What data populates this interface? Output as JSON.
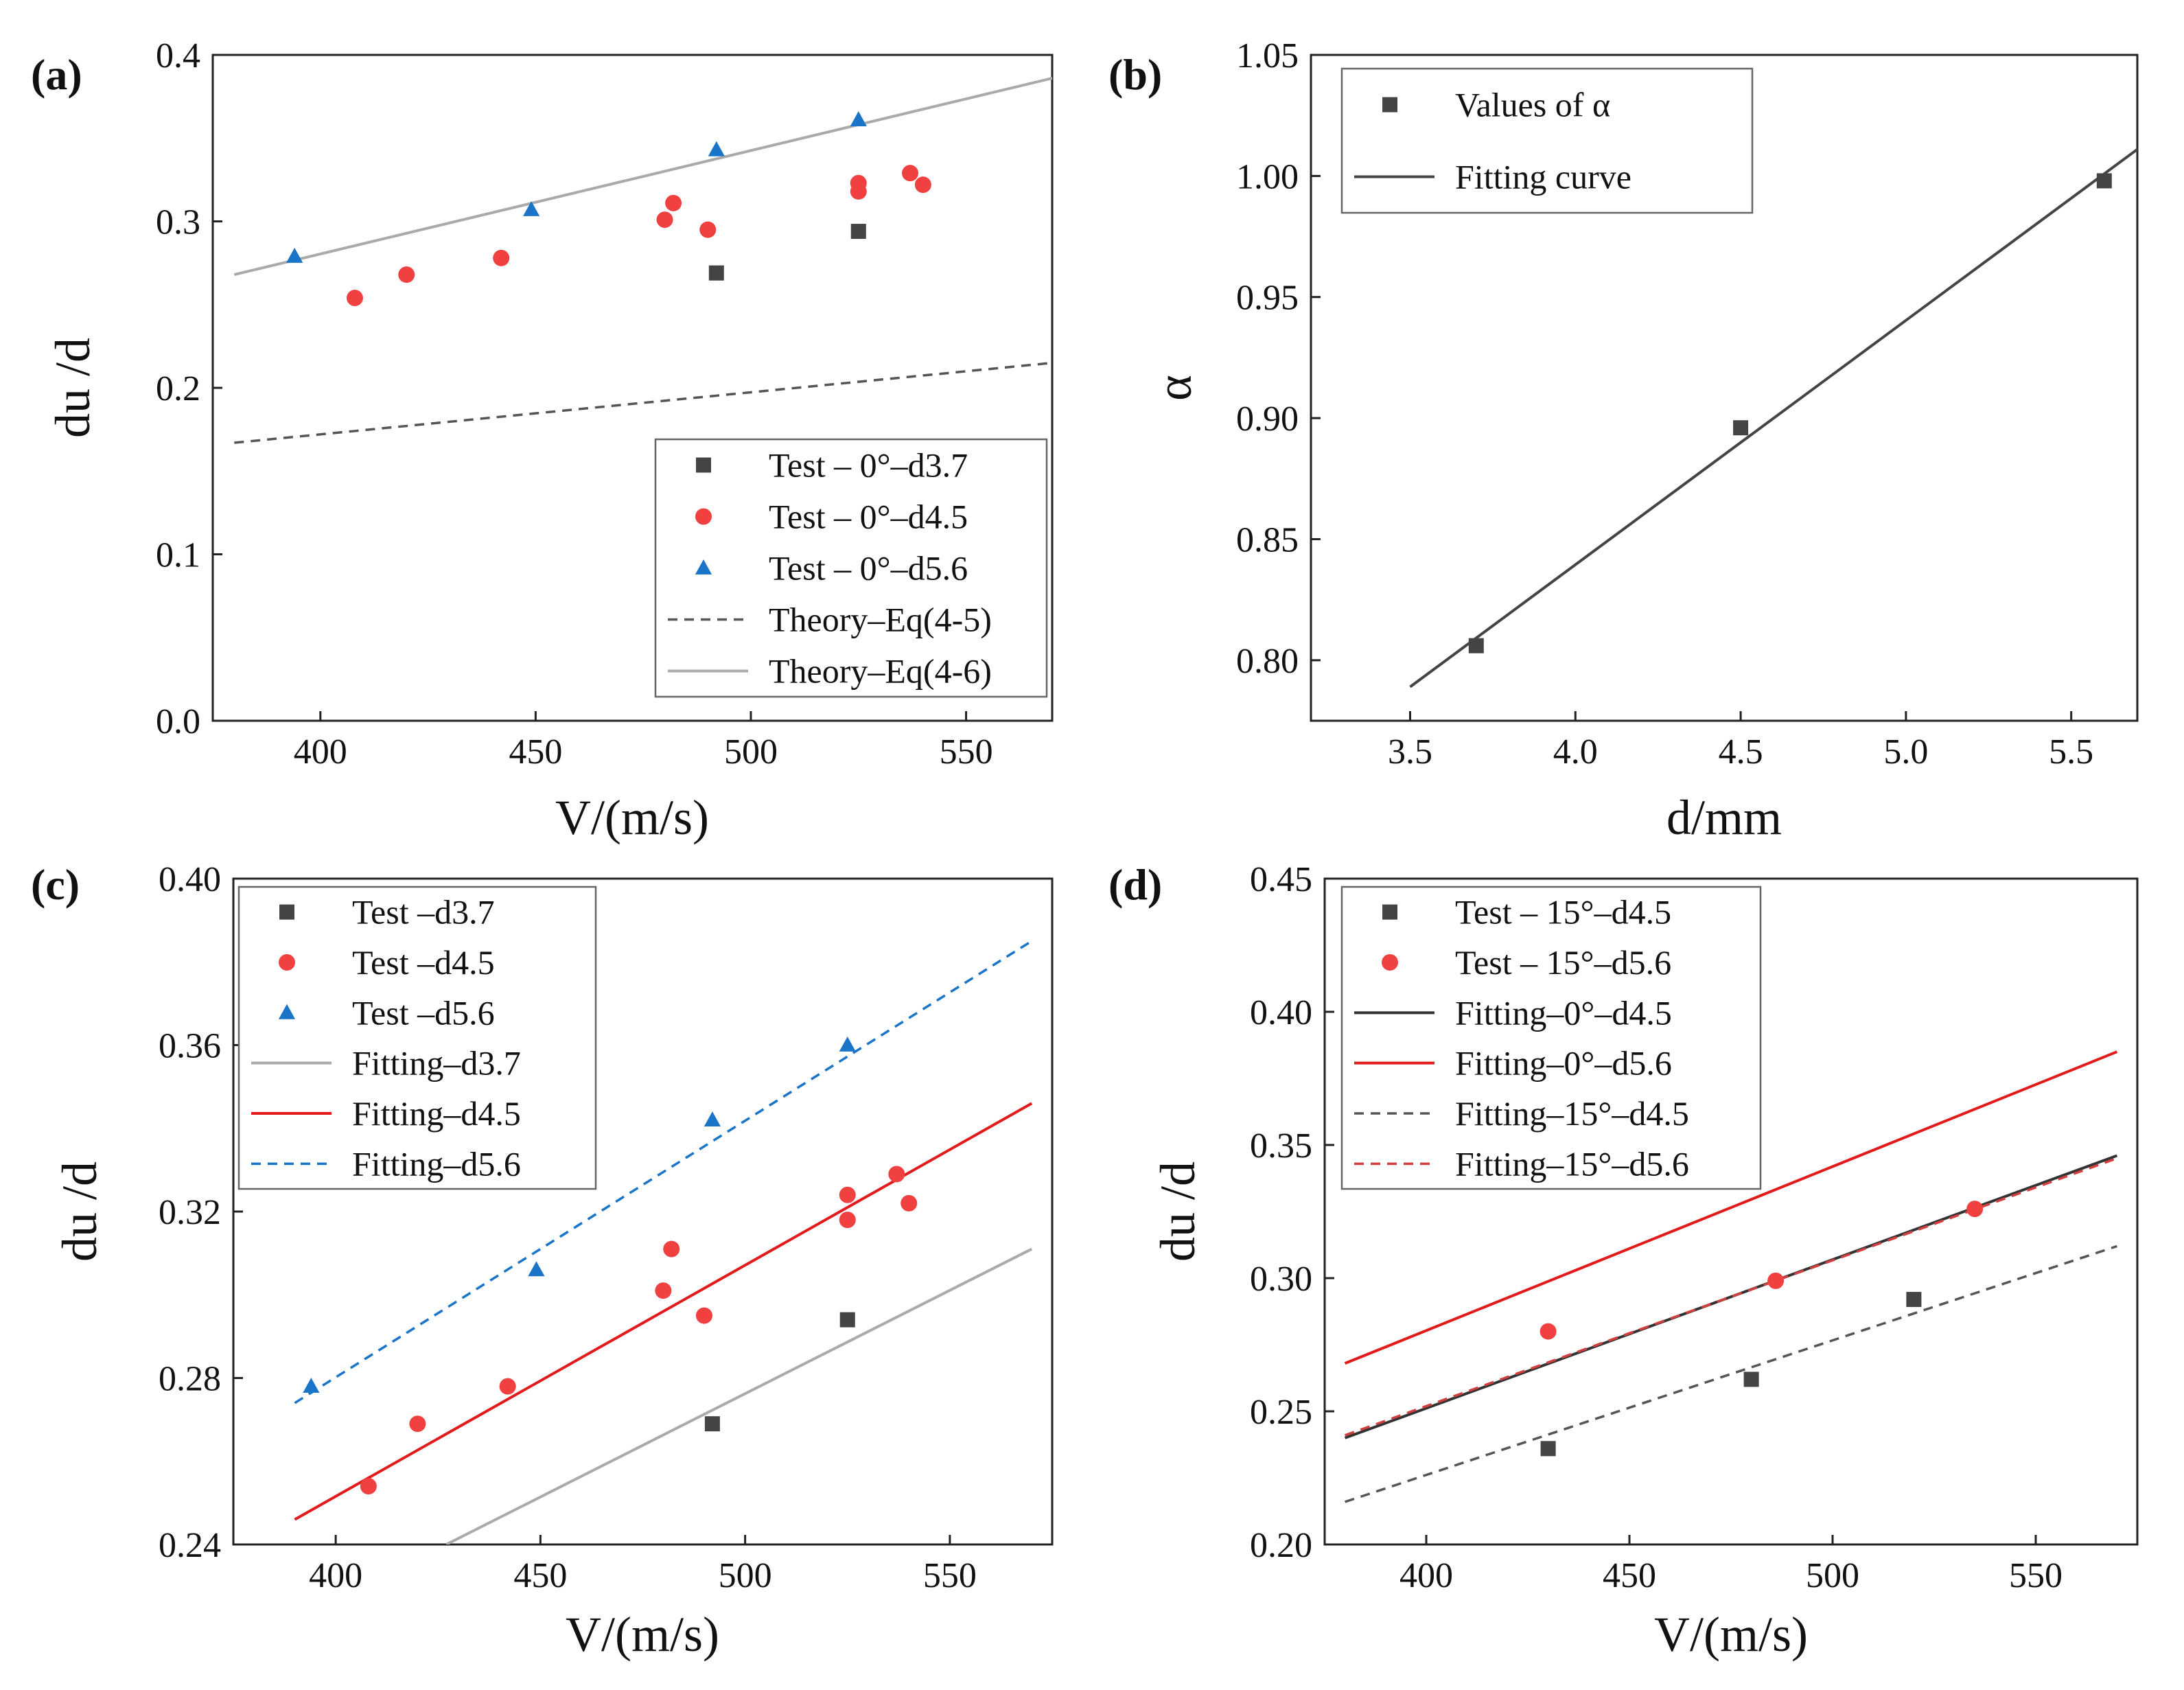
{
  "chart_data": [
    {
      "panel": "(a)",
      "type": "scatter",
      "xlabel": "V/(m/s)",
      "ylabel": "du /d",
      "xlim": [
        375,
        570
      ],
      "ylim": [
        0.0,
        0.4
      ],
      "xticks": [
        400,
        450,
        500,
        550
      ],
      "yticks": [
        0.0,
        0.1,
        0.2,
        0.3,
        0.4
      ],
      "ytick_decimals": 1,
      "legend_position": "bottom-right",
      "series": [
        {
          "name": "Test – 0°–d3.7",
          "kind": "points",
          "marker": "square",
          "color": "#444444",
          "x": [
            492,
            525
          ],
          "y": [
            0.269,
            0.294
          ]
        },
        {
          "name": "Test – 0°–d4.5",
          "kind": "points",
          "marker": "circle",
          "color": "#f04040",
          "x": [
            408,
            420,
            442,
            480,
            482,
            490,
            525,
            525,
            537,
            540
          ],
          "y": [
            0.254,
            0.268,
            0.278,
            0.301,
            0.311,
            0.295,
            0.323,
            0.318,
            0.329,
            0.322
          ]
        },
        {
          "name": "Test – 0°–d5.6",
          "kind": "points",
          "marker": "triangle",
          "color": "#1a74c8",
          "x": [
            394,
            449,
            492,
            525
          ],
          "y": [
            0.279,
            0.307,
            0.343,
            0.361
          ]
        },
        {
          "name": "Theory–Eq(4-5)",
          "kind": "line",
          "dash": "dashed",
          "color": "#555555",
          "x": [
            380,
            570
          ],
          "y": [
            0.167,
            0.215
          ]
        },
        {
          "name": "Theory–Eq(4-6)",
          "kind": "line",
          "dash": "solid",
          "color": "#aaaaaa",
          "x": [
            380,
            570
          ],
          "y": [
            0.268,
            0.386
          ]
        }
      ]
    },
    {
      "panel": "(b)",
      "type": "scatter",
      "xlabel": "d/mm",
      "ylabel": "α",
      "xlim": [
        3.2,
        5.7
      ],
      "ylim": [
        0.775,
        1.05
      ],
      "xticks": [
        3.5,
        4.0,
        4.5,
        5.0,
        5.5
      ],
      "yticks": [
        0.8,
        0.85,
        0.9,
        0.95,
        1.0,
        1.05
      ],
      "xtick_decimals": 1,
      "ytick_decimals": 2,
      "legend_position": "top-left",
      "series": [
        {
          "name": "Values of α",
          "kind": "points",
          "marker": "square",
          "color": "#444444",
          "x": [
            3.7,
            4.5,
            5.6
          ],
          "y": [
            0.806,
            0.896,
            0.998
          ]
        },
        {
          "name": "Fitting curve",
          "kind": "line",
          "dash": "solid",
          "color": "#444444",
          "x": [
            3.5,
            5.7
          ],
          "y": [
            0.789,
            1.011
          ]
        }
      ]
    },
    {
      "panel": "(c)",
      "type": "scatter",
      "xlabel": "V/(m/s)",
      "ylabel": "du /d",
      "xlim": [
        375,
        575
      ],
      "ylim": [
        0.24,
        0.4
      ],
      "xticks": [
        400,
        450,
        500,
        550
      ],
      "yticks": [
        0.24,
        0.28,
        0.32,
        0.36,
        0.4
      ],
      "ytick_decimals": 2,
      "legend_position": "top-left",
      "series": [
        {
          "name": "Test –d3.7",
          "kind": "points",
          "marker": "square",
          "color": "#444444",
          "x": [
            492,
            525
          ],
          "y": [
            0.269,
            0.294
          ]
        },
        {
          "name": "Test –d4.5",
          "kind": "points",
          "marker": "circle",
          "color": "#f04040",
          "x": [
            408,
            420,
            442,
            480,
            482,
            490,
            525,
            525,
            537,
            540
          ],
          "y": [
            0.254,
            0.269,
            0.278,
            0.301,
            0.311,
            0.295,
            0.324,
            0.318,
            0.329,
            0.322
          ]
        },
        {
          "name": "Test –d5.6",
          "kind": "points",
          "marker": "triangle",
          "color": "#1a74c8",
          "x": [
            394,
            449,
            492,
            525
          ],
          "y": [
            0.278,
            0.306,
            0.342,
            0.36
          ]
        },
        {
          "name": "Fitting–d3.7",
          "kind": "line",
          "dash": "solid",
          "color": "#aaaaaa",
          "x": [
            427,
            570
          ],
          "y": [
            0.24,
            0.311
          ]
        },
        {
          "name": "Fitting–d4.5",
          "kind": "line",
          "dash": "solid",
          "color": "#e11b1b",
          "x": [
            390,
            570
          ],
          "y": [
            0.246,
            0.346
          ]
        },
        {
          "name": "Fitting–d5.6",
          "kind": "line",
          "dash": "dashed",
          "color": "#1a74c8",
          "x": [
            390,
            570
          ],
          "y": [
            0.274,
            0.385
          ]
        }
      ]
    },
    {
      "panel": "(d)",
      "type": "scatter",
      "xlabel": "V/(m/s)",
      "ylabel": "du /d",
      "xlim": [
        375,
        575
      ],
      "ylim": [
        0.2,
        0.45
      ],
      "xticks": [
        400,
        450,
        500,
        550
      ],
      "yticks": [
        0.2,
        0.25,
        0.3,
        0.35,
        0.4,
        0.45
      ],
      "ytick_decimals": 2,
      "legend_position": "top-left",
      "series": [
        {
          "name": "Test – 15°–d4.5",
          "kind": "points",
          "marker": "square",
          "color": "#444444",
          "x": [
            430,
            480,
            520
          ],
          "y": [
            0.236,
            0.262,
            0.292
          ]
        },
        {
          "name": "Test – 15°–d5.6",
          "kind": "points",
          "marker": "circle",
          "color": "#f04040",
          "x": [
            430,
            486,
            535
          ],
          "y": [
            0.28,
            0.299,
            0.326
          ]
        },
        {
          "name": "Fitting–0°–d4.5",
          "kind": "line",
          "dash": "solid",
          "color": "#333333",
          "x": [
            380,
            570
          ],
          "y": [
            0.24,
            0.346
          ]
        },
        {
          "name": "Fitting–0°–d5.6",
          "kind": "line",
          "dash": "solid",
          "color": "#e11b1b",
          "x": [
            380,
            570
          ],
          "y": [
            0.268,
            0.385
          ]
        },
        {
          "name": "Fitting–15°–d4.5",
          "kind": "line",
          "dash": "dashed",
          "color": "#555555",
          "x": [
            380,
            570
          ],
          "y": [
            0.216,
            0.312
          ]
        },
        {
          "name": "Fitting–15°–d5.6",
          "kind": "line",
          "dash": "dashed",
          "color": "#d04040",
          "x": [
            380,
            570
          ],
          "y": [
            0.241,
            0.345
          ]
        }
      ]
    }
  ]
}
